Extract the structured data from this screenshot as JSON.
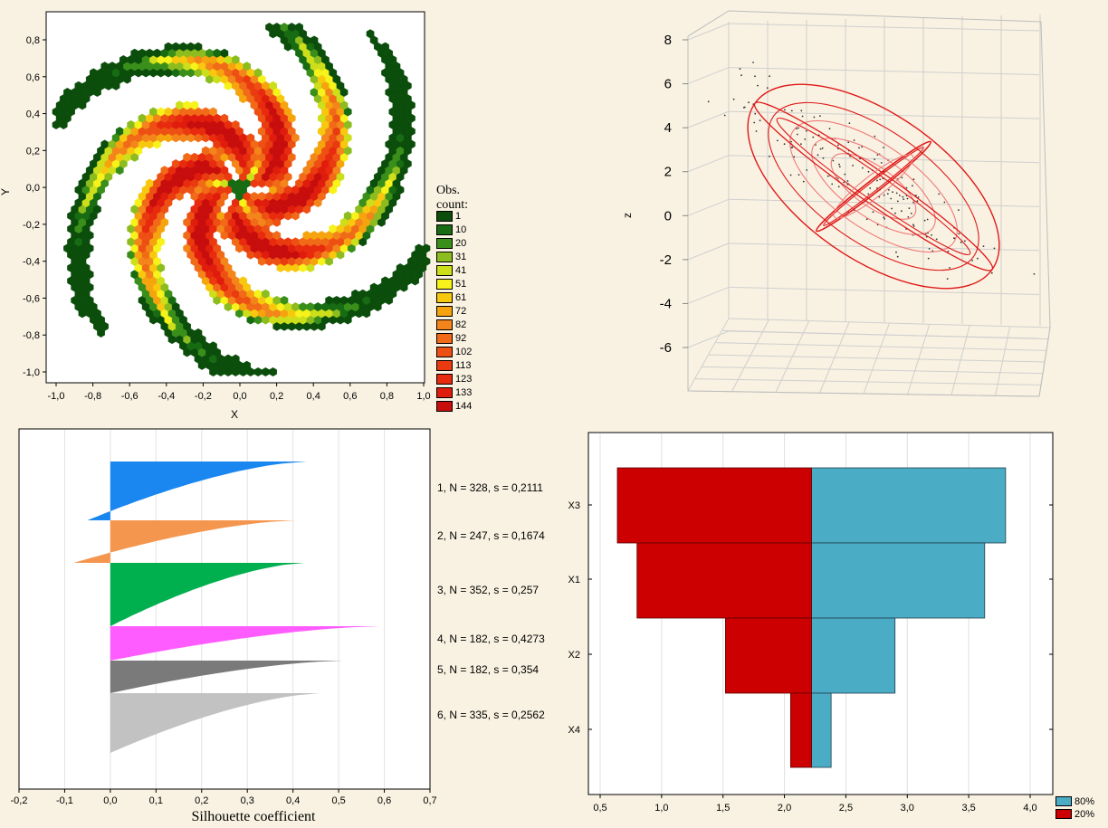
{
  "chart_data": [
    {
      "type": "heatmap",
      "xlabel": "X",
      "ylabel": "Y",
      "xlim": [
        -1.0,
        1.0
      ],
      "ylim": [
        -1.0,
        0.9
      ],
      "x_ticks": [
        "-1,0",
        "-0,8",
        "-0,6",
        "-0,4",
        "-0,2",
        "0,0",
        "0,2",
        "0,4",
        "0,6",
        "0,8",
        "1,0"
      ],
      "y_ticks": [
        "0,8",
        "0,6",
        "0,4",
        "0,2",
        "0,0",
        "-0,2",
        "-0,4",
        "-0,6",
        "-0,8",
        "-1,0"
      ],
      "legend_title": "Obs. count:",
      "legend_placement": "right",
      "legend": [
        {
          "label": "1",
          "color": "#0b4d0b"
        },
        {
          "label": "10",
          "color": "#176b12"
        },
        {
          "label": "20",
          "color": "#3a8f1b"
        },
        {
          "label": "31",
          "color": "#8cbc1e"
        },
        {
          "label": "41",
          "color": "#cddf1a"
        },
        {
          "label": "51",
          "color": "#f6f21a"
        },
        {
          "label": "61",
          "color": "#f8c80e"
        },
        {
          "label": "72",
          "color": "#f5a40e"
        },
        {
          "label": "82",
          "color": "#f3851a"
        },
        {
          "label": "92",
          "color": "#f06a17"
        },
        {
          "label": "102",
          "color": "#ee5014"
        },
        {
          "label": "113",
          "color": "#ea3a10"
        },
        {
          "label": "123",
          "color": "#e82a0e"
        },
        {
          "label": "133",
          "color": "#e01c0d"
        },
        {
          "label": "144",
          "color": "#c80d0d"
        }
      ],
      "spiral_arms": 6
    },
    {
      "type": "scatter",
      "zlabel": "z",
      "z_ticks": [
        "8",
        "6",
        "4",
        "2",
        "0",
        "-2",
        "-4",
        "-6"
      ],
      "zlim": [
        -7,
        8
      ],
      "ellipse_color": "#e01818"
    },
    {
      "type": "bar",
      "xlabel": "Silhouette  coefficient",
      "xlim": [
        -0.2,
        0.7
      ],
      "x_ticks": [
        "-0,2",
        "-0,1",
        "0,0",
        "0,1",
        "0,2",
        "0,3",
        "0,4",
        "0,5",
        "0,6",
        "0,7"
      ],
      "series": [
        {
          "label": "1, N = 328, s = 0,2111",
          "color": "#1a86f0",
          "max": 0.43,
          "min": -0.05,
          "start": 0.415
        },
        {
          "label": "2, N = 247, s = 0,1674",
          "color": "#f5964e",
          "max": 0.405,
          "min": -0.08,
          "start": 0.39
        },
        {
          "label": "3, N = 352, s = 0,257",
          "color": "#00b04e",
          "max": 0.425,
          "min": 0.0,
          "start": 0.405
        },
        {
          "label": "4, N = 182, s = 0,4273",
          "color": "#ff5cff",
          "max": 0.59,
          "min": 0.0,
          "start": 0.575
        },
        {
          "label": "5, N = 182, s = 0,354",
          "color": "#7a7a7a",
          "max": 0.51,
          "min": 0.0,
          "start": 0.495
        },
        {
          "label": "6, N = 335, s = 0,2562",
          "color": "#c2c2c2",
          "max": 0.46,
          "min": 0.0,
          "start": 0.44
        }
      ]
    },
    {
      "type": "bar",
      "orientation": "horizontal-pyramid",
      "xlim": [
        0.5,
        4.1
      ],
      "x_ticks": [
        "0,5",
        "1,0",
        "1,5",
        "2,0",
        "2,5",
        "3,0",
        "3,5",
        "4,0"
      ],
      "center": 2.22,
      "categories": [
        "X3",
        "X1",
        "X2",
        "X4"
      ],
      "series": [
        {
          "name": "80%",
          "color": "#4bacc6",
          "values": [
            3.8,
            3.63,
            2.9,
            2.38
          ]
        },
        {
          "name": "20%",
          "color": "#cc0000",
          "values": [
            0.64,
            0.8,
            1.52,
            2.05
          ]
        }
      ],
      "legend_placement": "bottom-right"
    }
  ]
}
